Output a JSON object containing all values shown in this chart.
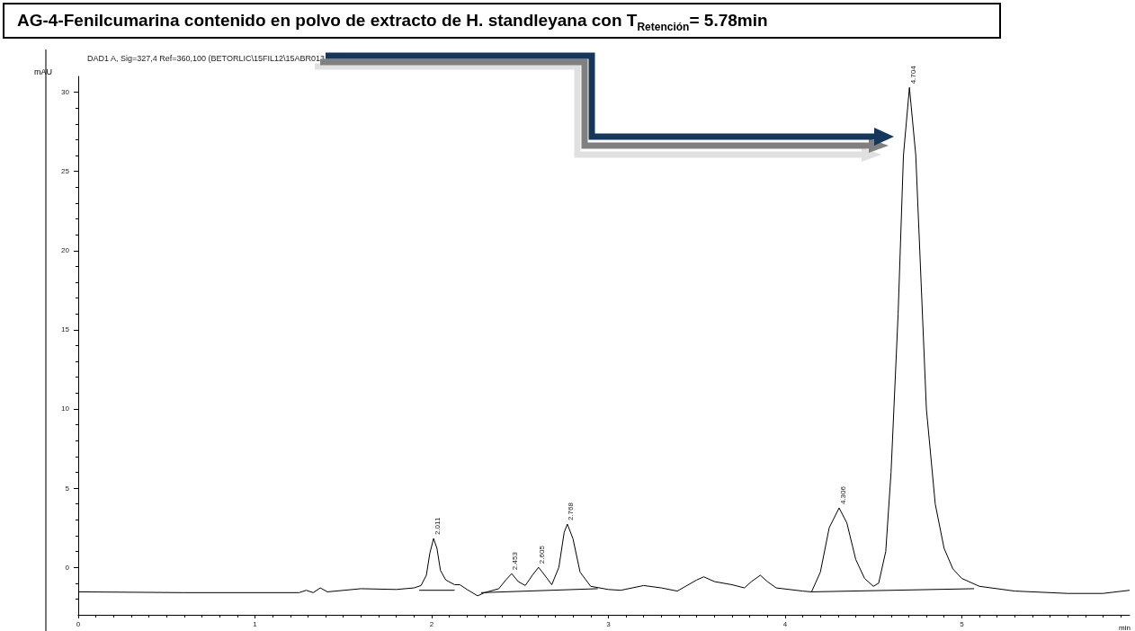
{
  "chart_data": {
    "type": "line",
    "title": "AG-4-Fenilcumarina contenido en polvo de extracto de H. standleyana con T$_{Retención}$= 5.78min",
    "subtitle": "DAD1 A, Sig=327,4 Ref=360,100 (BETORLIC\\15FIL12\\15ABR013",
    "xlabel": "min",
    "ylabel": "mAU",
    "series": [
      {
        "color": "#000000",
        "x": [
          0,
          0.6,
          1.25,
          1.29,
          1.33,
          1.37,
          1.41,
          1.6,
          1.8,
          1.9,
          1.94,
          1.97,
          1.99,
          2.011,
          2.03,
          2.05,
          2.08,
          2.13,
          2.16,
          2.2,
          2.26,
          2.3,
          2.38,
          2.42,
          2.453,
          2.49,
          2.53,
          2.57,
          2.605,
          2.64,
          2.68,
          2.72,
          2.75,
          2.768,
          2.8,
          2.84,
          2.9,
          3.0,
          3.07,
          3.2,
          3.3,
          3.39,
          3.5,
          3.54,
          3.6,
          3.7,
          3.77,
          3.81,
          3.86,
          3.9,
          3.95,
          4.1,
          4.15,
          4.2,
          4.25,
          4.306,
          4.35,
          4.4,
          4.45,
          4.5,
          4.53,
          4.57,
          4.6,
          4.64,
          4.67,
          4.704,
          4.74,
          4.77,
          4.8,
          4.85,
          4.9,
          4.95,
          5.0,
          5.1,
          5.3,
          5.6,
          5.8,
          5.95
        ],
        "values": [
          -1.55,
          -1.6,
          -1.6,
          -1.45,
          -1.6,
          -1.3,
          -1.55,
          -1.35,
          -1.4,
          -1.3,
          -1.15,
          -0.5,
          0.9,
          1.82,
          1.2,
          -0.2,
          -0.8,
          -1.1,
          -1.1,
          -1.4,
          -1.8,
          -1.6,
          -1.35,
          -0.8,
          -0.4,
          -0.9,
          -1.15,
          -0.5,
          0.0,
          -0.5,
          -1.1,
          0.0,
          2.2,
          2.73,
          1.8,
          -0.3,
          -1.2,
          -1.4,
          -1.45,
          -1.15,
          -1.3,
          -1.5,
          -0.8,
          -0.6,
          -0.9,
          -1.1,
          -1.3,
          -0.9,
          -0.5,
          -0.9,
          -1.3,
          -1.5,
          -1.55,
          -0.3,
          2.5,
          3.75,
          2.8,
          0.5,
          -0.7,
          -1.2,
          -1.0,
          1.0,
          6.0,
          16.0,
          26.0,
          30.3,
          26.0,
          18.0,
          10.0,
          4.0,
          1.2,
          -0.1,
          -0.7,
          -1.2,
          -1.5,
          -1.65,
          -1.65,
          -1.45
        ]
      },
      {
        "color": "#000000",
        "x": [
          1.93,
          2.13
        ],
        "values": [
          -1.45,
          -1.45
        ]
      },
      {
        "color": "#000000",
        "x": [
          2.28,
          2.94
        ],
        "values": [
          -1.6,
          -1.35
        ]
      },
      {
        "color": "#000000",
        "x": [
          4.15,
          5.07
        ],
        "values": [
          -1.55,
          -1.35
        ]
      }
    ],
    "xlim": [
      0,
      5.95
    ],
    "xticks": [
      0,
      1,
      2,
      3,
      4,
      5
    ],
    "ylim": [
      -3,
      31
    ],
    "yticks": [
      0,
      5,
      10,
      15,
      20,
      25,
      30
    ],
    "annotations": [
      {
        "text": "2.011",
        "x": 2.011,
        "y": 1.82
      },
      {
        "text": "2.453",
        "x": 2.453,
        "y": -0.4
      },
      {
        "text": "2.605",
        "x": 2.605,
        "y": 0.0
      },
      {
        "text": "2.768",
        "x": 2.768,
        "y": 2.73
      },
      {
        "text": "4.306",
        "x": 4.306,
        "y": 3.75
      },
      {
        "text": "4.704",
        "x": 4.704,
        "y": 30.3
      }
    ],
    "grid": false,
    "marker": "none",
    "line_style": "solid"
  }
}
